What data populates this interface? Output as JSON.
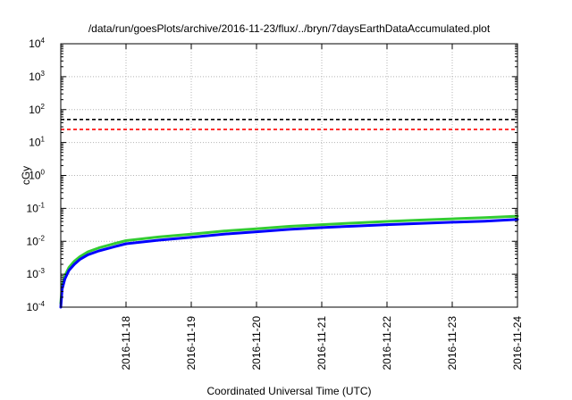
{
  "chart_data": {
    "type": "line",
    "title": "/data/run/goesPlots/archive/2016-11-23/flux/../bryn/7daysEarthDataAccumulated.plot",
    "xlabel": "Coordinated Universal Time (UTC)",
    "ylabel": "cGy",
    "x_scale": "time",
    "y_scale": "log",
    "xlim": [
      "2016-11-17T00:00",
      "2016-11-24T00:00"
    ],
    "ylim": [
      0.0001,
      10000
    ],
    "x_ticks": [
      "2016-11-18",
      "2016-11-19",
      "2016-11-20",
      "2016-11-21",
      "2016-11-22",
      "2016-11-23",
      "2016-11-24"
    ],
    "y_ticks": [
      {
        "value": 0.0001,
        "base": "10",
        "exp": "-4"
      },
      {
        "value": 0.001,
        "base": "10",
        "exp": "-3"
      },
      {
        "value": 0.01,
        "base": "10",
        "exp": "-2"
      },
      {
        "value": 0.1,
        "base": "10",
        "exp": "-1"
      },
      {
        "value": 1,
        "base": "10",
        "exp": "0"
      },
      {
        "value": 10,
        "base": "10",
        "exp": "1"
      },
      {
        "value": 100,
        "base": "10",
        "exp": "2"
      },
      {
        "value": 1000,
        "base": "10",
        "exp": "3"
      },
      {
        "value": 10000,
        "base": "10",
        "exp": "4"
      }
    ],
    "grid": true,
    "reference_lines": [
      {
        "value": 50,
        "color": "#000000",
        "style": "dashed"
      },
      {
        "value": 25,
        "color": "#ff0000",
        "style": "dashed"
      }
    ],
    "series": [
      {
        "color": "#33cc33",
        "x": [
          "2016-11-17T00:00",
          "2016-11-17T00:30",
          "2016-11-17T01:30",
          "2016-11-17T03:00",
          "2016-11-17T05:00",
          "2016-11-17T07:00",
          "2016-11-17T10:00",
          "2016-11-17T14:00",
          "2016-11-17T19:00",
          "2016-11-18T00:00",
          "2016-11-18T12:00",
          "2016-11-19T00:00",
          "2016-11-19T12:00",
          "2016-11-20T00:00",
          "2016-11-20T12:00",
          "2016-11-21T00:00",
          "2016-11-21T12:00",
          "2016-11-22T00:00",
          "2016-11-22T12:00",
          "2016-11-23T00:00",
          "2016-11-23T12:00",
          "2016-11-24T00:00"
        ],
        "y": [
          0.00013,
          0.00045,
          0.0009,
          0.0016,
          0.0025,
          0.0034,
          0.0048,
          0.0063,
          0.0082,
          0.0105,
          0.0135,
          0.0165,
          0.0205,
          0.024,
          0.0285,
          0.032,
          0.036,
          0.04,
          0.044,
          0.048,
          0.052,
          0.058
        ]
      },
      {
        "color": "#0000ff",
        "x": [
          "2016-11-17T00:00",
          "2016-11-17T00:30",
          "2016-11-17T01:30",
          "2016-11-17T03:00",
          "2016-11-17T05:00",
          "2016-11-17T07:00",
          "2016-11-17T10:00",
          "2016-11-17T14:00",
          "2016-11-17T19:00",
          "2016-11-18T00:00",
          "2016-11-18T12:00",
          "2016-11-19T00:00",
          "2016-11-19T12:00",
          "2016-11-20T00:00",
          "2016-11-20T12:00",
          "2016-11-21T00:00",
          "2016-11-21T12:00",
          "2016-11-22T00:00",
          "2016-11-22T12:00",
          "2016-11-23T00:00",
          "2016-11-23T12:00",
          "2016-11-24T00:00"
        ],
        "y": [
          0.0001,
          0.00035,
          0.00072,
          0.0013,
          0.002,
          0.0028,
          0.0039,
          0.0051,
          0.0066,
          0.0084,
          0.0108,
          0.0133,
          0.0165,
          0.0195,
          0.023,
          0.026,
          0.029,
          0.032,
          0.035,
          0.038,
          0.041,
          0.046
        ]
      }
    ]
  }
}
